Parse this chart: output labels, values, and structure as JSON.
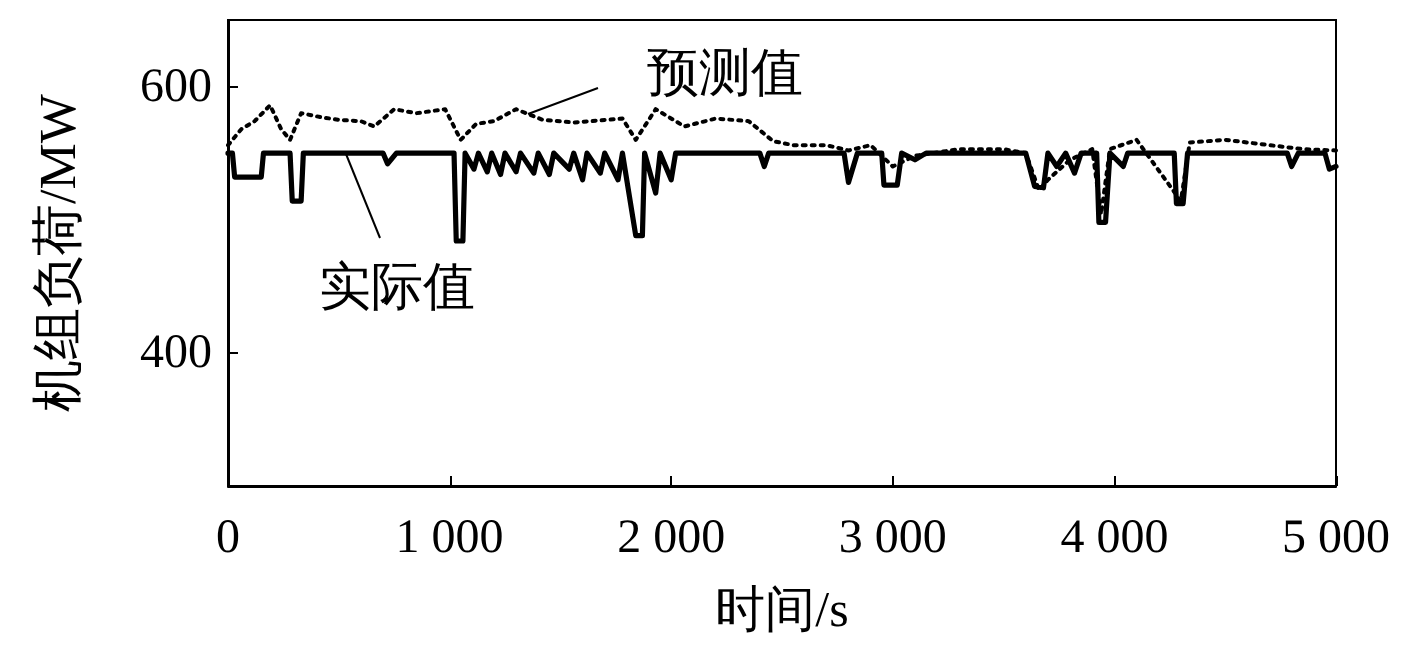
{
  "chart_data": {
    "type": "line",
    "xlabel": "时间/s",
    "ylabel": "机组负荷/MW",
    "xlim": [
      0,
      5000
    ],
    "xticks": [
      {
        "value": 0,
        "label": "0"
      },
      {
        "value": 1000,
        "label": "1 000"
      },
      {
        "value": 2000,
        "label": "2 000"
      },
      {
        "value": 3000,
        "label": "3 000"
      },
      {
        "value": 4000,
        "label": "4 000"
      },
      {
        "value": 5000,
        "label": "5 000"
      }
    ],
    "ylim": [
      300,
      650
    ],
    "yticks": [
      400,
      600
    ],
    "grid": false,
    "marker": "none",
    "annotations": [
      {
        "text": "预测值",
        "x": 1350,
        "y": 580
      },
      {
        "text": "实际值",
        "x": 530,
        "y": 550
      }
    ],
    "series": [
      {
        "color": "#000000",
        "line_style": "solid",
        "x": [
          0,
          20,
          30,
          150,
          160,
          280,
          290,
          330,
          340,
          700,
          720,
          760,
          1020,
          1030,
          1060,
          1070,
          1110,
          1130,
          1170,
          1190,
          1230,
          1250,
          1300,
          1320,
          1380,
          1400,
          1450,
          1470,
          1540,
          1560,
          1600,
          1620,
          1680,
          1700,
          1760,
          1780,
          1840,
          1870,
          1880,
          1930,
          1950,
          2000,
          2020,
          2400,
          2420,
          2440,
          2780,
          2800,
          2840,
          2950,
          2960,
          3020,
          3040,
          3100,
          3150,
          3600,
          3640,
          3680,
          3700,
          3740,
          3780,
          3820,
          3850,
          3920,
          3930,
          3960,
          3980,
          4040,
          4060,
          4270,
          4280,
          4310,
          4330,
          4780,
          4800,
          4830,
          4950,
          4970,
          5000
        ],
        "values": [
          550,
          550,
          532,
          532,
          550,
          550,
          514,
          514,
          550,
          550,
          542,
          550,
          550,
          484,
          484,
          550,
          538,
          550,
          536,
          550,
          534,
          550,
          536,
          550,
          535,
          550,
          534,
          550,
          538,
          550,
          530,
          550,
          535,
          550,
          530,
          550,
          488,
          488,
          550,
          520,
          550,
          530,
          550,
          550,
          540,
          550,
          550,
          528,
          550,
          550,
          526,
          526,
          550,
          545,
          550,
          550,
          525,
          524,
          550,
          540,
          550,
          535,
          550,
          550,
          498,
          498,
          550,
          540,
          550,
          550,
          512,
          512,
          550,
          550,
          540,
          550,
          550,
          538,
          540
        ]
      },
      {
        "color": "#000000",
        "line_style": "dotted",
        "x": [
          0,
          60,
          120,
          190,
          240,
          280,
          330,
          420,
          500,
          600,
          660,
          750,
          850,
          980,
          1050,
          1120,
          1200,
          1300,
          1420,
          1560,
          1780,
          1840,
          1930,
          2060,
          2200,
          2350,
          2460,
          2550,
          2700,
          2800,
          2900,
          3000,
          3100,
          3300,
          3500,
          3600,
          3660,
          3700,
          3800,
          3900,
          3940,
          3980,
          4100,
          4300,
          4340,
          4500,
          4700,
          4850,
          5000
        ],
        "values": [
          556,
          568,
          574,
          586,
          568,
          560,
          580,
          577,
          575,
          574,
          570,
          583,
          580,
          583,
          560,
          572,
          574,
          583,
          575,
          573,
          576,
          560,
          583,
          570,
          576,
          574,
          559,
          556,
          556,
          552,
          556,
          540,
          548,
          553,
          553,
          550,
          522,
          530,
          545,
          553,
          504,
          553,
          560,
          514,
          558,
          560,
          556,
          553,
          552
        ]
      }
    ]
  }
}
